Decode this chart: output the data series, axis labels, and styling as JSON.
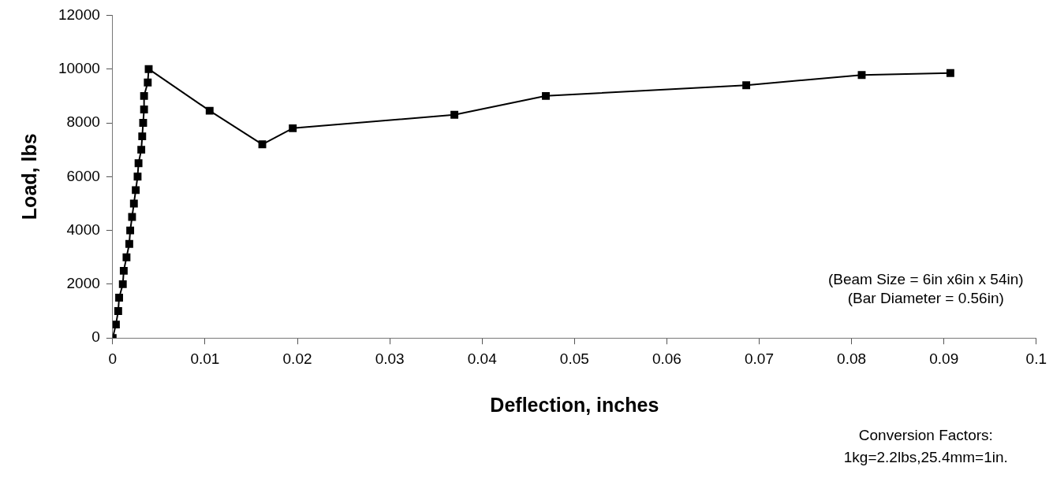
{
  "chart_data": {
    "type": "line",
    "xlabel": "Deflection, inches",
    "ylabel": "Load, lbs",
    "x": [
      0,
      0.00035,
      0.0006,
      0.0007,
      0.0011,
      0.0012,
      0.0015,
      0.0018,
      0.0019,
      0.0021,
      0.0023,
      0.0025,
      0.0027,
      0.0028,
      0.0031,
      0.0032,
      0.0033,
      0.0034,
      0.0034,
      0.0038,
      0.0039,
      0.0105,
      0.0162,
      0.0195,
      0.037,
      0.0469,
      0.0686,
      0.0811,
      0.0907
    ],
    "series": [
      {
        "color": "#000000",
        "values": [
          0,
          500,
          1000,
          1500,
          2000,
          2500,
          3000,
          3500,
          4000,
          4500,
          5000,
          5500,
          6000,
          6500,
          7000,
          7500,
          8000,
          8500,
          9000,
          9500,
          10000,
          8450,
          7200,
          7800,
          8300,
          9000,
          9400,
          9780,
          9850
        ]
      }
    ],
    "xlim": [
      0,
      0.1
    ],
    "xticks": [
      0,
      0.01,
      0.02,
      0.03,
      0.04,
      0.05,
      0.06,
      0.07,
      0.08,
      0.09,
      0.1
    ],
    "ylim": [
      0,
      12000
    ],
    "yticks": [
      0,
      2000,
      4000,
      6000,
      8000,
      10000,
      12000
    ],
    "grid": false,
    "legend": false,
    "marker": "square",
    "line_style": "solid",
    "annotations": [
      "(Beam Size = 6in x6in x 54in)",
      "(Bar Diameter = 0.56in)",
      "Conversion Factors:",
      "1kg=2.2lbs,25.4mm=1in."
    ]
  }
}
